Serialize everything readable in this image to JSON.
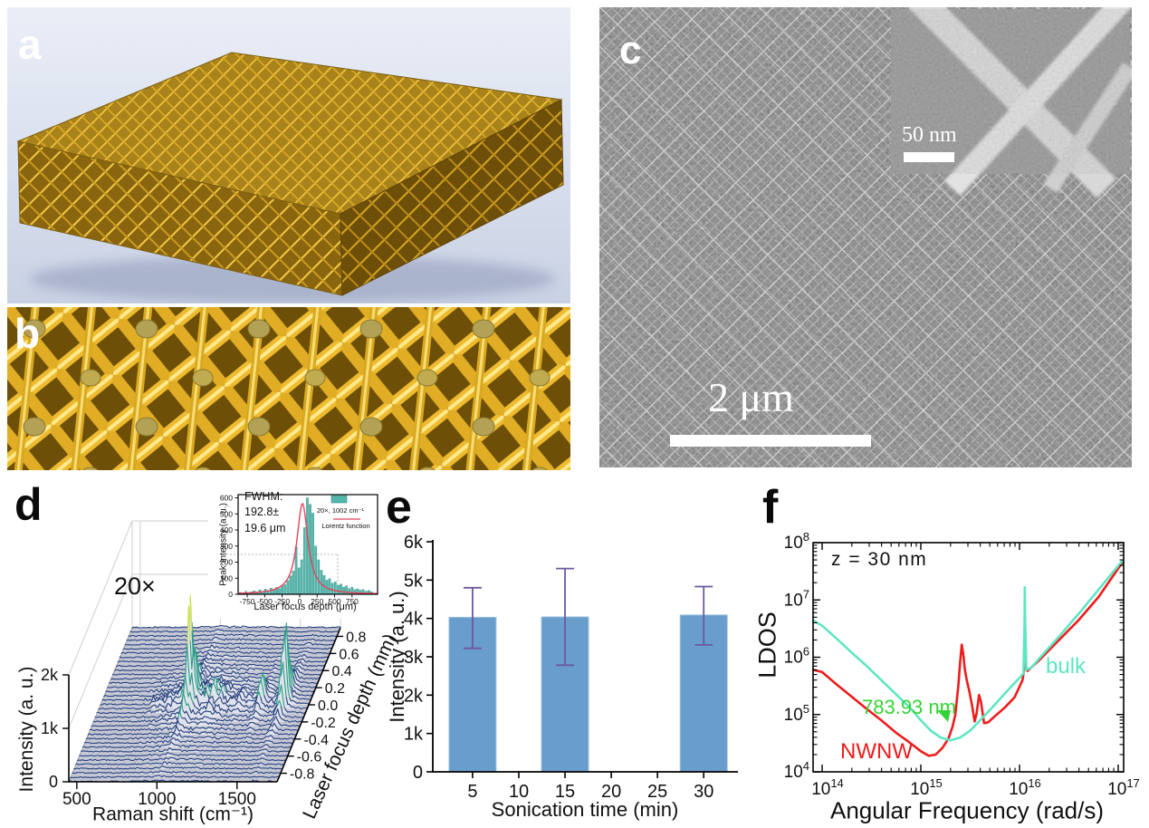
{
  "panel_a": {
    "label": "a"
  },
  "panel_b": {
    "label": "b"
  },
  "panel_c": {
    "label": "c",
    "scale_bar_label": "2 μm",
    "inset_scale_bar_label": "50 nm"
  },
  "panel_d": {
    "label": "d",
    "annotation": "20×",
    "xlabel": "Raman shift (cm⁻¹)",
    "ylabel": "Intensity (a. u.)",
    "zlabel": "Laser focus depth (mm)",
    "inset": {
      "xlabel": "Laser focus depth (μm)",
      "ylabel": "Peak Intensity (a. u.)",
      "annotation_lines": [
        "FWHM:",
        "192.8±",
        "19.6 μm"
      ]
    }
  },
  "panel_e": {
    "label": "e",
    "xlabel": "Sonication time (min)",
    "ylabel": "Intensity (a. u.)"
  },
  "panel_f": {
    "label": "f",
    "xlabel": "Angular Frequency (rad/s)",
    "ylabel": "LDOS",
    "annotation": "z = 30 nm",
    "nwnw_label": "NWNW",
    "bulk_label": "bulk",
    "marker_label": "783.93 nm"
  },
  "chart_data": [
    {
      "id": "raman-waterfall",
      "type": "line",
      "subtype": "waterfall3d",
      "xlabel": "Raman shift (cm⁻¹)",
      "ylabel": "Intensity (a. u.)",
      "zlabel": "Laser focus depth (mm)",
      "xlim": [
        450,
        1750
      ],
      "ylim": [
        0,
        2000
      ],
      "zlim": [
        -0.9,
        0.9
      ],
      "x_ticks": [
        500,
        1000,
        1500
      ],
      "y_ticks": [
        "0",
        "1k",
        "2k"
      ],
      "z_ticks": [
        "-0.8",
        "-0.6",
        "-0.4",
        "-0.2",
        "0.0",
        "0.2",
        "0.4",
        "0.6",
        "0.8"
      ],
      "annotation": "20×",
      "n_spectra": 37,
      "raman_peaks": [
        {
          "center": 1002,
          "width": 9,
          "amp": 1.0
        },
        {
          "center": 1031,
          "width": 8,
          "amp": 0.4
        },
        {
          "center": 1155,
          "width": 10,
          "amp": 0.15
        },
        {
          "center": 1205,
          "width": 12,
          "amp": 0.1
        },
        {
          "center": 1320,
          "width": 14,
          "amp": 0.08
        },
        {
          "center": 1450,
          "width": 16,
          "amp": 0.28
        },
        {
          "center": 1583,
          "width": 10,
          "amp": 0.45
        },
        {
          "center": 1602,
          "width": 9,
          "amp": 0.7
        }
      ],
      "depth_profile": {
        "center_mm": 0.03,
        "fwhm_mm": 0.1928,
        "peak_intensity": 1900
      },
      "colors": {
        "low": "#27407e",
        "mid": "#2a9f86",
        "high": "#ccdf52",
        "floor": "#c5c8d4"
      }
    },
    {
      "id": "focus-depth-histogram",
      "type": "bar",
      "xlabel": "Laser focus depth (μm)",
      "ylabel": "Peak Intensity (a. u.)",
      "x_start": -850,
      "x_step": 40,
      "values": [
        12,
        8,
        18,
        10,
        16,
        22,
        14,
        28,
        18,
        32,
        24,
        38,
        28,
        42,
        36,
        52,
        60,
        85,
        115,
        145,
        295,
        165,
        215,
        415,
        600,
        560,
        505,
        300,
        215,
        150,
        118,
        88,
        98,
        70,
        78,
        55,
        63,
        45,
        53,
        36,
        44,
        30,
        34,
        26,
        30,
        20,
        24,
        15
      ],
      "xlim": [
        -880,
        1115
      ],
      "ylim": [
        0,
        620
      ],
      "x_ticks": [
        -750,
        -500,
        -250,
        0,
        250,
        500,
        750
      ],
      "y_ticks": [
        0,
        100,
        200,
        300,
        400,
        500,
        600
      ],
      "lorentz": {
        "amplitude": 565,
        "center": 40,
        "fwhm": 193
      },
      "annotation_lines": [
        "FWHM:",
        "192.8±",
        "19.6 μm"
      ],
      "legend": [
        {
          "label": "20×, 1002 cm⁻¹",
          "type": "bar",
          "color": "#55b7ab"
        },
        {
          "label": "Lorentz function",
          "type": "line",
          "color": "#e8415c"
        }
      ],
      "bar_color": "#55b7ab",
      "bar_edge_color": "#2f8d82",
      "line_color": "#e8415c"
    },
    {
      "id": "sonication-bars",
      "type": "bar",
      "xlabel": "Sonication time (min)",
      "ylabel": "Intensity (a. u.)",
      "categories": [
        5,
        15,
        30
      ],
      "values": [
        4030,
        4040,
        4090
      ],
      "error_low": [
        3220,
        2780,
        3310
      ],
      "error_high": [
        4800,
        5300,
        4830
      ],
      "xlim": [
        0.7,
        33.7
      ],
      "ylim": [
        0,
        6000
      ],
      "x_ticks": [
        5,
        10,
        15,
        20,
        25,
        30
      ],
      "y_ticks": [
        "0",
        "1k",
        "2k",
        "3k",
        "4k",
        "5k",
        "6k"
      ],
      "bar_color": "#699dcb",
      "bar_edge_color": "#9cc3e0",
      "error_color": "#6f58a0"
    },
    {
      "id": "ldos-spectrum",
      "type": "line",
      "xscale": "log",
      "yscale": "log",
      "xlabel": "Angular Frequency (rad/s)",
      "ylabel": "LDOS",
      "xlim_log10": [
        13.9,
        17.05
      ],
      "ylim_log10": [
        4,
        8
      ],
      "x_tick_exponents": [
        14,
        15,
        16,
        17
      ],
      "y_tick_exponents": [
        4,
        5,
        6,
        7,
        8
      ],
      "annotation": "z = 30 nm",
      "series": [
        {
          "name": "NWNW",
          "color": "#ee1c1c",
          "points_log10": [
            [
              13.91,
              5.78
            ],
            [
              14.0,
              5.74
            ],
            [
              14.15,
              5.52
            ],
            [
              14.3,
              5.31
            ],
            [
              14.45,
              5.1
            ],
            [
              14.6,
              4.9
            ],
            [
              14.75,
              4.68
            ],
            [
              14.88,
              4.52
            ],
            [
              15.0,
              4.36
            ],
            [
              15.08,
              4.28
            ],
            [
              15.15,
              4.3
            ],
            [
              15.22,
              4.42
            ],
            [
              15.28,
              4.58
            ],
            [
              15.32,
              4.78
            ],
            [
              15.35,
              5.0
            ],
            [
              15.38,
              5.5
            ],
            [
              15.4,
              5.95
            ],
            [
              15.415,
              6.22
            ],
            [
              15.43,
              6.05
            ],
            [
              15.445,
              5.8
            ],
            [
              15.465,
              5.6
            ],
            [
              15.49,
              5.42
            ],
            [
              15.52,
              5.15
            ],
            [
              15.545,
              4.88
            ],
            [
              15.565,
              5.02
            ],
            [
              15.59,
              5.34
            ],
            [
              15.61,
              5.22
            ],
            [
              15.64,
              4.85
            ],
            [
              15.68,
              4.86
            ],
            [
              15.75,
              4.97
            ],
            [
              15.85,
              5.12
            ],
            [
              15.95,
              5.3
            ],
            [
              16.03,
              5.6
            ],
            [
              16.055,
              5.88
            ],
            [
              16.08,
              5.76
            ],
            [
              16.2,
              5.95
            ],
            [
              16.4,
              6.3
            ],
            [
              16.6,
              6.65
            ],
            [
              16.8,
              7.05
            ],
            [
              17.04,
              7.65
            ]
          ]
        },
        {
          "name": "bulk",
          "color": "#5ee6c3",
          "points_log10": [
            [
              13.91,
              6.64
            ],
            [
              14.0,
              6.55
            ],
            [
              14.15,
              6.32
            ],
            [
              14.3,
              6.08
            ],
            [
              14.45,
              5.85
            ],
            [
              14.6,
              5.6
            ],
            [
              14.75,
              5.35
            ],
            [
              14.9,
              5.1
            ],
            [
              15.0,
              4.9
            ],
            [
              15.1,
              4.72
            ],
            [
              15.2,
              4.6
            ],
            [
              15.3,
              4.55
            ],
            [
              15.4,
              4.6
            ],
            [
              15.5,
              4.72
            ],
            [
              15.6,
              4.9
            ],
            [
              15.7,
              5.08
            ],
            [
              15.8,
              5.27
            ],
            [
              15.9,
              5.46
            ],
            [
              16.0,
              5.64
            ],
            [
              16.04,
              5.72
            ],
            [
              16.05,
              6.6
            ],
            [
              16.053,
              7.22
            ],
            [
              16.058,
              6.6
            ],
            [
              16.07,
              5.78
            ],
            [
              16.12,
              5.82
            ],
            [
              16.2,
              5.98
            ],
            [
              16.4,
              6.36
            ],
            [
              16.6,
              6.76
            ],
            [
              16.8,
              7.18
            ],
            [
              17.04,
              7.68
            ]
          ]
        }
      ],
      "marker": {
        "label": "783.93 nm",
        "color": "#35d435",
        "tip_log10": [
          15.275,
          4.87
        ]
      }
    }
  ]
}
